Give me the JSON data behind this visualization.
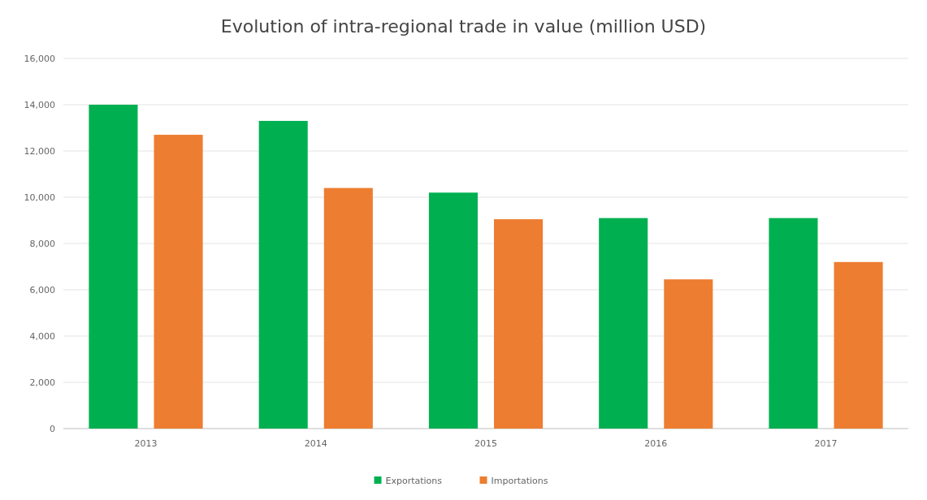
{
  "chart_data": {
    "type": "bar",
    "title": "Evolution of intra-regional trade in value (million USD)",
    "categories": [
      "2013",
      "2014",
      "2015",
      "2016",
      "2017"
    ],
    "series": [
      {
        "name": "Exportations",
        "color": "#00b050",
        "values": [
          14000,
          13300,
          10200,
          9100,
          9100
        ]
      },
      {
        "name": "Importations",
        "color": "#ed7d31",
        "values": [
          12700,
          10400,
          9050,
          6450,
          7200
        ]
      }
    ],
    "ylim": [
      0,
      16000
    ],
    "yticks": [
      {
        "value": 0,
        "label": "0"
      },
      {
        "value": 2000,
        "label": "2,000"
      },
      {
        "value": 4000,
        "label": "4,000"
      },
      {
        "value": 6000,
        "label": "6,000"
      },
      {
        "value": 8000,
        "label": "8,000"
      },
      {
        "value": 10000,
        "label": "10,000"
      },
      {
        "value": 12000,
        "label": "12,000"
      },
      {
        "value": 14000,
        "label": "14,000"
      },
      {
        "value": 16000,
        "label": "16,000"
      }
    ],
    "grid": "y",
    "legend": "bottom"
  }
}
